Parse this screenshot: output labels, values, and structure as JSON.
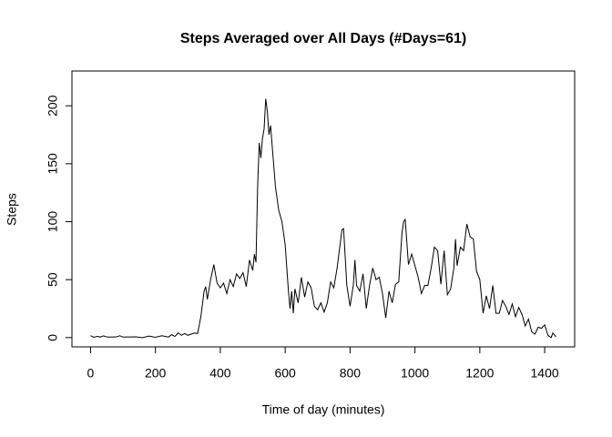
{
  "chart_data": {
    "type": "line",
    "title": "Steps Averaged over All Days (#Days=61)",
    "x_label": "Time of day (minutes)",
    "y_label": "Steps",
    "x": [
      0,
      10,
      20,
      30,
      40,
      50,
      60,
      80,
      90,
      100,
      120,
      140,
      160,
      180,
      200,
      220,
      240,
      250,
      260,
      270,
      280,
      290,
      300,
      310,
      320,
      330,
      340,
      350,
      355,
      360,
      370,
      380,
      390,
      400,
      410,
      420,
      430,
      440,
      450,
      460,
      470,
      480,
      490,
      500,
      505,
      510,
      515,
      520,
      525,
      530,
      535,
      540,
      545,
      550,
      555,
      560,
      570,
      580,
      590,
      600,
      610,
      615,
      620,
      625,
      630,
      640,
      650,
      660,
      670,
      680,
      690,
      700,
      710,
      720,
      730,
      740,
      750,
      760,
      770,
      775,
      780,
      790,
      800,
      810,
      815,
      820,
      830,
      840,
      850,
      860,
      870,
      880,
      890,
      900,
      910,
      920,
      930,
      940,
      950,
      960,
      965,
      970,
      980,
      990,
      1000,
      1010,
      1020,
      1030,
      1040,
      1050,
      1060,
      1070,
      1080,
      1090,
      1100,
      1110,
      1120,
      1125,
      1130,
      1140,
      1150,
      1160,
      1170,
      1180,
      1190,
      1200,
      1210,
      1220,
      1230,
      1240,
      1250,
      1260,
      1270,
      1280,
      1290,
      1300,
      1310,
      1320,
      1330,
      1340,
      1350,
      1360,
      1370,
      1380,
      1390,
      1400,
      1410,
      1420,
      1425,
      1435
    ],
    "series": [
      {
        "name": "Steps",
        "color": "#000000",
        "values": [
          1.7,
          0.3,
          1,
          0.5,
          1.5,
          0.5,
          0.4,
          0.6,
          1.6,
          0.4,
          0.5,
          0.6,
          0,
          1.3,
          0.3,
          1.6,
          0.5,
          2.5,
          1,
          4,
          2,
          3.5,
          2,
          3,
          4,
          3.5,
          18,
          40,
          44,
          33,
          50,
          63,
          47,
          43,
          47,
          38,
          50,
          44,
          55,
          51,
          56,
          44,
          67,
          58,
          72,
          65,
          130,
          168,
          155,
          172,
          180,
          206,
          195,
          175,
          183,
          165,
          130,
          110,
          100,
          80,
          40,
          25,
          40,
          21,
          42,
          30,
          52,
          35,
          48,
          43,
          27,
          24,
          30,
          22,
          30,
          48,
          43,
          60,
          82,
          93,
          94,
          45,
          27,
          45,
          67,
          45,
          40,
          55,
          25,
          45,
          60,
          50,
          52,
          38,
          17,
          40,
          30,
          46,
          48,
          90,
          100,
          102,
          63,
          72,
          62,
          52,
          38,
          45,
          45,
          60,
          78,
          75,
          46,
          75,
          37,
          42,
          60,
          85,
          62,
          78,
          75,
          98,
          87,
          85,
          57,
          50,
          21,
          36,
          25,
          45,
          21,
          21,
          32,
          27,
          20,
          29,
          18,
          26,
          20,
          10,
          16,
          5,
          3,
          9,
          8,
          11,
          2,
          0,
          4,
          0.7
        ]
      }
    ],
    "xlim": [
      -57.4,
      1492.4
    ],
    "ylim": [
      -8,
      230
    ],
    "xticks": [
      0,
      200,
      400,
      600,
      800,
      1000,
      1200,
      1400
    ],
    "yticks": [
      0,
      50,
      100,
      150,
      200
    ]
  }
}
